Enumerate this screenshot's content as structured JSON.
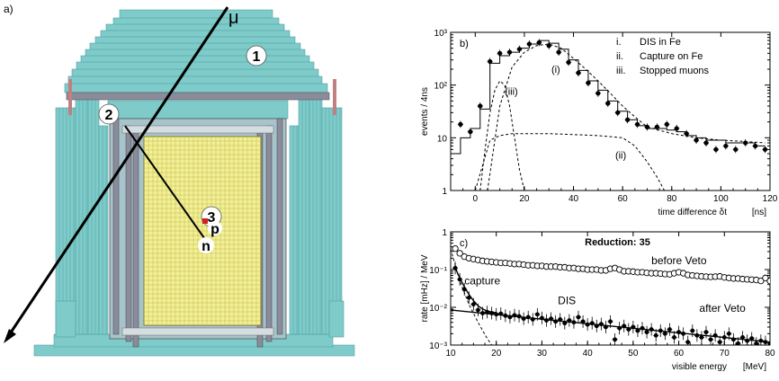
{
  "panel_a": {
    "label": "a)",
    "muon_label": "μ",
    "markers": [
      "1",
      "2",
      "3"
    ],
    "particles": {
      "proton": "p",
      "neutron": "n"
    },
    "colors": {
      "shield": "#7ecbc9",
      "shield_dark": "#4f9fa3",
      "steel": "#8a8c9c",
      "target": "#f1f09a",
      "grid": "#c7b73a",
      "track": "#000000",
      "base_red": "#c08080"
    }
  },
  "chart_data": [
    {
      "type": "line",
      "panel_label": "b)",
      "xlabel": "time difference δt",
      "xunit": "[ns]",
      "ylabel": "events / 4ns",
      "xlim": [
        -10,
        120
      ],
      "ylim": [
        1,
        1000
      ],
      "yscale": "log",
      "xticks": [
        0,
        20,
        40,
        60,
        80,
        100,
        120
      ],
      "yticks": [
        "1",
        "10",
        "10²",
        "10³"
      ],
      "legend": [
        {
          "key": "i.",
          "label": "DIS in Fe"
        },
        {
          "key": "ii.",
          "label": "Capture on Fe"
        },
        {
          "key": "iii.",
          "label": "Stopped muons"
        }
      ],
      "curve_labels": [
        "(i)",
        "(ii)",
        "(iii)"
      ],
      "series": [
        {
          "kind": "data-points",
          "x": [
            -6,
            -2,
            2,
            6,
            10,
            14,
            18,
            22,
            26,
            30,
            34,
            38,
            42,
            46,
            50,
            54,
            58,
            62,
            66,
            70,
            74,
            78,
            82,
            86,
            90,
            94,
            98,
            102,
            106,
            110,
            114,
            118
          ],
          "y": [
            18,
            13,
            40,
            280,
            400,
            420,
            480,
            600,
            640,
            560,
            420,
            270,
            170,
            110,
            70,
            45,
            30,
            22,
            18,
            16,
            16,
            18,
            15,
            12,
            9,
            8,
            6,
            7,
            6,
            8,
            7,
            6
          ]
        },
        {
          "kind": "histogram-mc",
          "x": [
            -10,
            -6,
            -2,
            2,
            6,
            10,
            14,
            18,
            22,
            26,
            30,
            34,
            38,
            42,
            46,
            50,
            54,
            58,
            62,
            66,
            70,
            74,
            78,
            82,
            86,
            90,
            94,
            98,
            102,
            106,
            110,
            114,
            118
          ],
          "y": [
            5,
            10,
            15,
            35,
            260,
            360,
            420,
            500,
            600,
            700,
            620,
            480,
            300,
            190,
            120,
            80,
            50,
            32,
            22,
            17,
            15,
            15,
            14,
            13,
            11,
            10,
            9,
            9,
            8,
            8,
            8,
            7
          ]
        },
        {
          "name": "(i)",
          "kind": "dashed",
          "x": [
            5,
            10,
            15,
            20,
            25,
            30,
            35,
            40,
            45,
            50,
            55,
            60,
            65,
            70,
            80,
            90,
            100,
            110,
            118
          ],
          "y": [
            1,
            40,
            220,
            420,
            560,
            600,
            500,
            320,
            200,
            120,
            70,
            40,
            25,
            16,
            12,
            10,
            9,
            8.5,
            8
          ]
        },
        {
          "name": "(ii)",
          "kind": "dashed",
          "x": [
            0,
            3,
            6,
            10,
            15,
            20,
            30,
            40,
            50,
            60,
            65,
            70,
            74,
            77
          ],
          "y": [
            1,
            3,
            9,
            11,
            12,
            12,
            12,
            11.5,
            11,
            10,
            7,
            3.5,
            1.8,
            1
          ]
        },
        {
          "name": "(iii)",
          "kind": "dashed",
          "x": [
            2,
            4,
            6,
            8,
            10,
            12,
            14,
            16,
            18,
            20
          ],
          "y": [
            1,
            6,
            30,
            80,
            120,
            100,
            40,
            10,
            2.5,
            1
          ]
        }
      ]
    },
    {
      "type": "scatter",
      "panel_label": "c)",
      "title": "Reduction: 35",
      "xlabel": "visible energy",
      "xunit": "[MeV]",
      "ylabel": "rate [mHz] / MeV",
      "xlim": [
        10,
        80
      ],
      "ylim": [
        0.001,
        1
      ],
      "yscale": "log",
      "xticks": [
        10,
        20,
        30,
        40,
        50,
        60,
        70,
        80
      ],
      "yticks": [
        "10⁻³",
        "10⁻²",
        "10⁻¹",
        "1"
      ],
      "annotations": [
        "before Veto",
        "capture",
        "DIS",
        "after Veto"
      ],
      "series": [
        {
          "name": "before Veto",
          "kind": "open-circles",
          "x": [
            11,
            12,
            13,
            14,
            15,
            16,
            17,
            18,
            19,
            20,
            21,
            22,
            23,
            24,
            25,
            26,
            27,
            28,
            29,
            30,
            31,
            32,
            33,
            34,
            35,
            36,
            37,
            38,
            39,
            40,
            41,
            42,
            43,
            44,
            45,
            46,
            47,
            48,
            49,
            50,
            51,
            52,
            53,
            54,
            55,
            56,
            57,
            58,
            59,
            60,
            61,
            62,
            63,
            64,
            65,
            66,
            67,
            68,
            69,
            70,
            71,
            72,
            73,
            74,
            75,
            76,
            77,
            78,
            79,
            80
          ],
          "y": [
            0.36,
            0.27,
            0.22,
            0.2,
            0.19,
            0.18,
            0.17,
            0.165,
            0.16,
            0.155,
            0.15,
            0.15,
            0.145,
            0.14,
            0.14,
            0.135,
            0.13,
            0.13,
            0.125,
            0.125,
            0.12,
            0.12,
            0.12,
            0.115,
            0.115,
            0.11,
            0.11,
            0.105,
            0.105,
            0.1,
            0.1,
            0.1,
            0.095,
            0.095,
            0.105,
            0.11,
            0.1,
            0.09,
            0.09,
            0.088,
            0.085,
            0.085,
            0.082,
            0.08,
            0.08,
            0.078,
            0.076,
            0.075,
            0.08,
            0.085,
            0.08,
            0.072,
            0.07,
            0.068,
            0.066,
            0.065,
            0.064,
            0.065,
            0.066,
            0.062,
            0.06,
            0.058,
            0.058,
            0.056,
            0.055,
            0.054,
            0.053,
            0.05,
            0.06,
            0.05
          ]
        },
        {
          "name": "after Veto",
          "kind": "filled-points",
          "x": [
            11,
            12,
            13,
            14,
            15,
            16,
            17,
            18,
            19,
            20,
            21,
            22,
            23,
            24,
            25,
            26,
            27,
            28,
            29,
            30,
            31,
            32,
            33,
            34,
            35,
            36,
            37,
            38,
            39,
            40,
            41,
            42,
            43,
            44,
            45,
            46,
            47,
            48,
            49,
            50,
            51,
            52,
            53,
            54,
            55,
            56,
            57,
            58,
            59,
            60,
            61,
            62,
            63,
            64,
            65,
            66,
            67,
            68,
            69,
            70,
            71,
            72,
            73,
            74,
            75,
            76,
            77,
            78,
            79,
            80
          ],
          "y": [
            0.11,
            0.055,
            0.03,
            0.018,
            0.012,
            0.0085,
            0.007,
            0.0075,
            0.007,
            0.0065,
            0.0068,
            0.006,
            0.0055,
            0.0062,
            0.0058,
            0.005,
            0.0055,
            0.0048,
            0.0065,
            0.0052,
            0.0045,
            0.005,
            0.0042,
            0.0048,
            0.0038,
            0.0045,
            0.004,
            0.0055,
            0.0042,
            0.0035,
            0.0038,
            0.0032,
            0.0036,
            0.003,
            0.0042,
            0.0014,
            0.0028,
            0.0032,
            0.0026,
            0.003,
            0.0024,
            0.0028,
            0.0022,
            0.0026,
            0.0018,
            0.0024,
            0.002,
            0.0026,
            0.0016,
            0.0022,
            0.002,
            0.0012,
            0.0024,
            0.0018,
            0.0016,
            0.0022,
            0.0014,
            0.0018,
            0.0012,
            0.0016,
            0.002,
            0.0014,
            0.0011,
            0.0016,
            0.0013,
            0.0015,
            0.0011,
            0.0013,
            0.0012,
            0.0011
          ]
        },
        {
          "name": "DIS",
          "kind": "solid-fit",
          "x": [
            10,
            80
          ],
          "y": [
            0.0085,
            0.0012
          ]
        },
        {
          "name": "capture",
          "kind": "solid-fit",
          "x": [
            11,
            12,
            13,
            14,
            15,
            16,
            17,
            18,
            19,
            20
          ],
          "y": [
            0.11,
            0.06,
            0.035,
            0.022,
            0.015,
            0.011,
            0.009,
            0.008,
            0.0075,
            0.0072
          ]
        },
        {
          "kind": "dashed-fit",
          "x": [
            10,
            12,
            14,
            16,
            18,
            19
          ],
          "y": [
            0.35,
            0.05,
            0.012,
            0.004,
            0.0015,
            0.001
          ]
        }
      ]
    }
  ]
}
